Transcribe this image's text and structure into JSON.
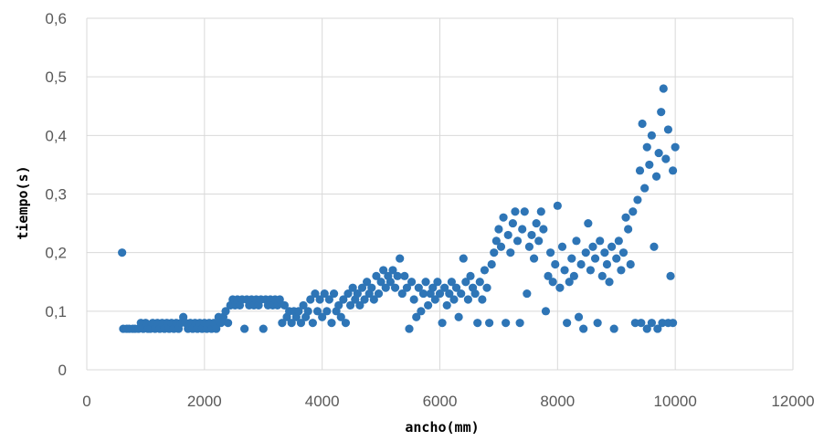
{
  "chart_data": {
    "type": "scatter",
    "xlabel": "ancho(mm)",
    "ylabel": "tiempo(s)",
    "xlim": [
      0,
      12000
    ],
    "ylim": [
      0,
      0.6
    ],
    "xticks": [
      0,
      2000,
      4000,
      6000,
      8000,
      10000,
      12000
    ],
    "yticks": [
      0,
      0.1,
      0.2,
      0.3,
      0.4,
      0.5,
      0.6
    ],
    "xtick_labels": [
      "0",
      "2000",
      "4000",
      "6000",
      "8000",
      "10000",
      "12000"
    ],
    "ytick_labels": [
      "0",
      "0,1",
      "0,2",
      "0,3",
      "0,4",
      "0,5",
      "0,6"
    ],
    "grid": true,
    "legend": "none",
    "marker_color": "#2E75B6",
    "series": [
      {
        "points": [
          [
            600,
            0.2
          ],
          [
            620,
            0.07
          ],
          [
            680,
            0.07
          ],
          [
            720,
            0.07
          ],
          [
            780,
            0.07
          ],
          [
            820,
            0.07
          ],
          [
            880,
            0.07
          ],
          [
            920,
            0.08
          ],
          [
            960,
            0.07
          ],
          [
            1000,
            0.08
          ],
          [
            1040,
            0.07
          ],
          [
            1080,
            0.07
          ],
          [
            1120,
            0.08
          ],
          [
            1160,
            0.07
          ],
          [
            1200,
            0.08
          ],
          [
            1240,
            0.07
          ],
          [
            1280,
            0.08
          ],
          [
            1320,
            0.07
          ],
          [
            1360,
            0.08
          ],
          [
            1400,
            0.07
          ],
          [
            1440,
            0.08
          ],
          [
            1480,
            0.07
          ],
          [
            1520,
            0.08
          ],
          [
            1560,
            0.07
          ],
          [
            1600,
            0.08
          ],
          [
            1640,
            0.09
          ],
          [
            1680,
            0.08
          ],
          [
            1720,
            0.07
          ],
          [
            1760,
            0.08
          ],
          [
            1800,
            0.07
          ],
          [
            1840,
            0.08
          ],
          [
            1880,
            0.07
          ],
          [
            1920,
            0.08
          ],
          [
            1960,
            0.07
          ],
          [
            2000,
            0.08
          ],
          [
            2040,
            0.07
          ],
          [
            2080,
            0.08
          ],
          [
            2120,
            0.07
          ],
          [
            2160,
            0.08
          ],
          [
            2200,
            0.07
          ],
          [
            2240,
            0.09
          ],
          [
            2280,
            0.08
          ],
          [
            2320,
            0.09
          ],
          [
            2360,
            0.1
          ],
          [
            2400,
            0.08
          ],
          [
            2440,
            0.11
          ],
          [
            2480,
            0.12
          ],
          [
            2520,
            0.11
          ],
          [
            2560,
            0.12
          ],
          [
            2600,
            0.11
          ],
          [
            2640,
            0.12
          ],
          [
            2680,
            0.07
          ],
          [
            2720,
            0.12
          ],
          [
            2760,
            0.11
          ],
          [
            2800,
            0.12
          ],
          [
            2840,
            0.11
          ],
          [
            2880,
            0.12
          ],
          [
            2920,
            0.11
          ],
          [
            2960,
            0.12
          ],
          [
            3000,
            0.07
          ],
          [
            3040,
            0.12
          ],
          [
            3080,
            0.11
          ],
          [
            3120,
            0.12
          ],
          [
            3160,
            0.11
          ],
          [
            3200,
            0.12
          ],
          [
            3240,
            0.11
          ],
          [
            3280,
            0.12
          ],
          [
            3320,
            0.08
          ],
          [
            3360,
            0.11
          ],
          [
            3400,
            0.09
          ],
          [
            3440,
            0.1
          ],
          [
            3480,
            0.08
          ],
          [
            3520,
            0.1
          ],
          [
            3560,
            0.09
          ],
          [
            3600,
            0.1
          ],
          [
            3640,
            0.08
          ],
          [
            3680,
            0.11
          ],
          [
            3720,
            0.09
          ],
          [
            3760,
            0.1
          ],
          [
            3800,
            0.12
          ],
          [
            3840,
            0.08
          ],
          [
            3880,
            0.13
          ],
          [
            3920,
            0.1
          ],
          [
            3960,
            0.12
          ],
          [
            4000,
            0.09
          ],
          [
            4040,
            0.13
          ],
          [
            4080,
            0.1
          ],
          [
            4120,
            0.12
          ],
          [
            4160,
            0.08
          ],
          [
            4200,
            0.13
          ],
          [
            4240,
            0.1
          ],
          [
            4280,
            0.11
          ],
          [
            4320,
            0.09
          ],
          [
            4360,
            0.12
          ],
          [
            4400,
            0.08
          ],
          [
            4440,
            0.13
          ],
          [
            4480,
            0.11
          ],
          [
            4520,
            0.14
          ],
          [
            4560,
            0.12
          ],
          [
            4600,
            0.13
          ],
          [
            4640,
            0.11
          ],
          [
            4680,
            0.14
          ],
          [
            4720,
            0.12
          ],
          [
            4760,
            0.15
          ],
          [
            4800,
            0.13
          ],
          [
            4840,
            0.14
          ],
          [
            4880,
            0.12
          ],
          [
            4920,
            0.16
          ],
          [
            4960,
            0.13
          ],
          [
            5000,
            0.15
          ],
          [
            5040,
            0.17
          ],
          [
            5080,
            0.14
          ],
          [
            5120,
            0.16
          ],
          [
            5160,
            0.15
          ],
          [
            5200,
            0.17
          ],
          [
            5240,
            0.14
          ],
          [
            5280,
            0.16
          ],
          [
            5320,
            0.19
          ],
          [
            5360,
            0.13
          ],
          [
            5400,
            0.16
          ],
          [
            5440,
            0.14
          ],
          [
            5480,
            0.07
          ],
          [
            5520,
            0.15
          ],
          [
            5560,
            0.12
          ],
          [
            5600,
            0.09
          ],
          [
            5640,
            0.14
          ],
          [
            5680,
            0.1
          ],
          [
            5720,
            0.13
          ],
          [
            5760,
            0.15
          ],
          [
            5800,
            0.11
          ],
          [
            5840,
            0.13
          ],
          [
            5880,
            0.14
          ],
          [
            5920,
            0.12
          ],
          [
            5960,
            0.15
          ],
          [
            6000,
            0.13
          ],
          [
            6040,
            0.08
          ],
          [
            6080,
            0.14
          ],
          [
            6120,
            0.11
          ],
          [
            6160,
            0.13
          ],
          [
            6200,
            0.15
          ],
          [
            6240,
            0.12
          ],
          [
            6280,
            0.14
          ],
          [
            6320,
            0.09
          ],
          [
            6360,
            0.13
          ],
          [
            6400,
            0.19
          ],
          [
            6440,
            0.15
          ],
          [
            6480,
            0.12
          ],
          [
            6520,
            0.16
          ],
          [
            6560,
            0.14
          ],
          [
            6600,
            0.13
          ],
          [
            6640,
            0.08
          ],
          [
            6680,
            0.15
          ],
          [
            6720,
            0.12
          ],
          [
            6760,
            0.17
          ],
          [
            6800,
            0.14
          ],
          [
            6840,
            0.08
          ],
          [
            6880,
            0.18
          ],
          [
            6920,
            0.2
          ],
          [
            6960,
            0.22
          ],
          [
            7000,
            0.24
          ],
          [
            7040,
            0.21
          ],
          [
            7080,
            0.26
          ],
          [
            7120,
            0.08
          ],
          [
            7160,
            0.23
          ],
          [
            7200,
            0.2
          ],
          [
            7240,
            0.25
          ],
          [
            7280,
            0.27
          ],
          [
            7320,
            0.22
          ],
          [
            7360,
            0.08
          ],
          [
            7400,
            0.24
          ],
          [
            7440,
            0.27
          ],
          [
            7480,
            0.13
          ],
          [
            7520,
            0.21
          ],
          [
            7560,
            0.23
          ],
          [
            7600,
            0.19
          ],
          [
            7640,
            0.25
          ],
          [
            7680,
            0.22
          ],
          [
            7720,
            0.27
          ],
          [
            7760,
            0.24
          ],
          [
            7800,
            0.1
          ],
          [
            7840,
            0.16
          ],
          [
            7880,
            0.2
          ],
          [
            7920,
            0.15
          ],
          [
            7960,
            0.18
          ],
          [
            8000,
            0.28
          ],
          [
            8040,
            0.14
          ],
          [
            8080,
            0.21
          ],
          [
            8120,
            0.17
          ],
          [
            8160,
            0.08
          ],
          [
            8200,
            0.15
          ],
          [
            8240,
            0.19
          ],
          [
            8280,
            0.16
          ],
          [
            8320,
            0.22
          ],
          [
            8360,
            0.09
          ],
          [
            8400,
            0.18
          ],
          [
            8440,
            0.07
          ],
          [
            8480,
            0.2
          ],
          [
            8520,
            0.25
          ],
          [
            8560,
            0.17
          ],
          [
            8600,
            0.21
          ],
          [
            8640,
            0.19
          ],
          [
            8680,
            0.08
          ],
          [
            8720,
            0.22
          ],
          [
            8760,
            0.16
          ],
          [
            8800,
            0.2
          ],
          [
            8840,
            0.18
          ],
          [
            8880,
            0.15
          ],
          [
            8920,
            0.21
          ],
          [
            8960,
            0.07
          ],
          [
            9000,
            0.19
          ],
          [
            9040,
            0.22
          ],
          [
            9080,
            0.17
          ],
          [
            9120,
            0.2
          ],
          [
            9160,
            0.26
          ],
          [
            9200,
            0.24
          ],
          [
            9240,
            0.18
          ],
          [
            9280,
            0.27
          ],
          [
            9320,
            0.08
          ],
          [
            9360,
            0.29
          ],
          [
            9400,
            0.34
          ],
          [
            9440,
            0.42
          ],
          [
            9480,
            0.31
          ],
          [
            9520,
            0.38
          ],
          [
            9560,
            0.35
          ],
          [
            9600,
            0.4
          ],
          [
            9640,
            0.21
          ],
          [
            9680,
            0.33
          ],
          [
            9720,
            0.37
          ],
          [
            9760,
            0.44
          ],
          [
            9800,
            0.48
          ],
          [
            9840,
            0.36
          ],
          [
            9880,
            0.41
          ],
          [
            9920,
            0.16
          ],
          [
            9960,
            0.34
          ],
          [
            10000,
            0.38
          ],
          [
            9420,
            0.08
          ],
          [
            9520,
            0.07
          ],
          [
            9600,
            0.08
          ],
          [
            9700,
            0.07
          ],
          [
            9780,
            0.08
          ],
          [
            9880,
            0.08
          ],
          [
            9960,
            0.08
          ]
        ]
      }
    ]
  }
}
